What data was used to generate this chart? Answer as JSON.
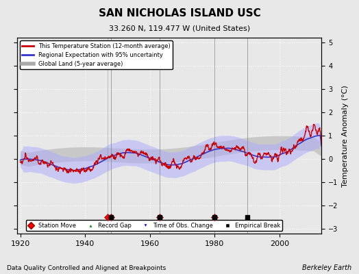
{
  "title": "SAN NICHOLAS ISLAND USC",
  "subtitle": "33.260 N, 119.477 W (United States)",
  "ylabel": "Temperature Anomaly (°C)",
  "xlabel_bottom": "Data Quality Controlled and Aligned at Breakpoints",
  "xlabel_right": "Berkeley Earth",
  "ylim": [
    -3.2,
    5.2
  ],
  "xlim": [
    1919,
    2013
  ],
  "yticks": [
    -3,
    -2,
    -1,
    0,
    1,
    2,
    3,
    4,
    5
  ],
  "xticks": [
    1920,
    1940,
    1960,
    1980,
    2000
  ],
  "bg_color": "#e8e8e8",
  "plot_bg_color": "#e8e8e8",
  "station_moves": [
    1947,
    1948,
    1963,
    1980
  ],
  "record_gaps": [
    1990
  ],
  "time_obs_changes": [],
  "empirical_breaks": [
    1948,
    1963,
    1980,
    1990
  ],
  "seed": 42
}
